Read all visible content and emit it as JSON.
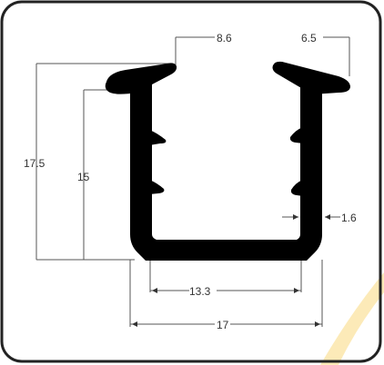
{
  "colors": {
    "profile": "#000000",
    "frame": "#222222",
    "dimension_lines": "#555555",
    "watermark": "#f7c94a"
  },
  "dimensions": {
    "top_left_width": "8.6",
    "top_right_width": "6.5",
    "overall_height": "17.5",
    "inner_height": "15",
    "wall_thickness": "1.6",
    "inner_width": "13.3",
    "overall_width": "17"
  }
}
